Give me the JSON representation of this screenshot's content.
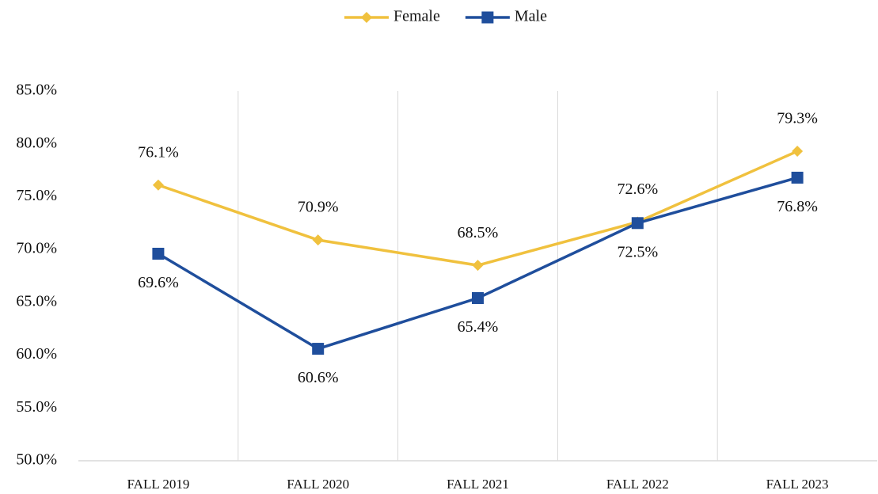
{
  "chart_data": {
    "type": "line",
    "categories": [
      "FALL 2019",
      "FALL 2020",
      "FALL 2021",
      "FALL 2022",
      "FALL 2023"
    ],
    "series": [
      {
        "name": "Female",
        "color": "#f0c13e",
        "marker": "diamond",
        "label_position": "above",
        "values": [
          76.1,
          70.9,
          68.5,
          72.6,
          79.3
        ],
        "value_labels": [
          "76.1%",
          "70.9%",
          "68.5%",
          "72.6%",
          "79.3%"
        ]
      },
      {
        "name": "Male",
        "color": "#1f4e9c",
        "marker": "square",
        "label_position": "below",
        "values": [
          69.6,
          60.6,
          65.4,
          72.5,
          76.8
        ],
        "value_labels": [
          "69.6%",
          "60.6%",
          "65.4%",
          "72.5%",
          "76.8%"
        ]
      }
    ],
    "ylim": [
      50,
      85
    ],
    "yticks": [
      {
        "value": 50,
        "label": "50.0%"
      },
      {
        "value": 55,
        "label": "55.0%"
      },
      {
        "value": 60,
        "label": "60.0%"
      },
      {
        "value": 65,
        "label": "65.0%"
      },
      {
        "value": 70,
        "label": "70.0%"
      },
      {
        "value": 75,
        "label": "75.0%"
      },
      {
        "value": 80,
        "label": "80.0%"
      },
      {
        "value": 85,
        "label": "85.0%"
      }
    ],
    "legend": "top"
  }
}
